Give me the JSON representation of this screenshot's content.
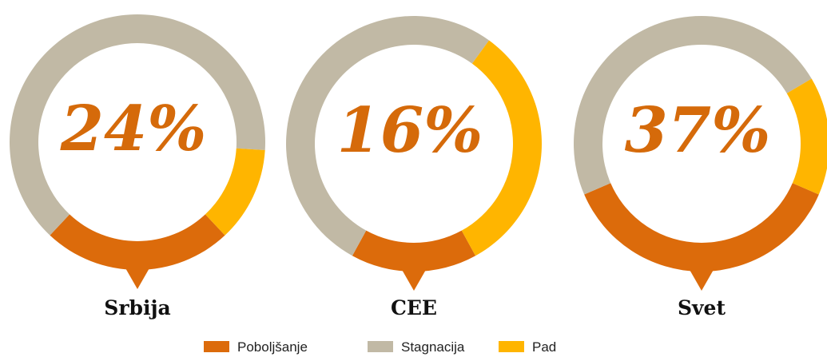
{
  "chart_data": [
    {
      "type": "pie",
      "title": "Srbija",
      "categories": [
        "Poboljšanje",
        "Stagnacija",
        "Pad"
      ],
      "values": [
        24,
        64,
        12
      ],
      "value_labels": [
        "24%",
        null,
        null
      ],
      "colors": [
        "#dc6b0b",
        "#c1b9a5",
        "#ffb500"
      ]
    },
    {
      "type": "pie",
      "title": "CEE",
      "categories": [
        "Poboljšanje",
        "Stagnacija",
        "Pad"
      ],
      "values": [
        16,
        52,
        32
      ],
      "value_labels": [
        "16%",
        null,
        null
      ],
      "colors": [
        "#dc6b0b",
        "#c1b9a5",
        "#ffb500"
      ]
    },
    {
      "type": "pie",
      "title": "Svet",
      "categories": [
        "Poboljšanje",
        "Stagnacija",
        "Pad"
      ],
      "values": [
        37,
        48,
        15
      ],
      "value_labels": [
        "37%",
        null,
        null
      ],
      "colors": [
        "#dc6b0b",
        "#c1b9a5",
        "#ffb500"
      ]
    }
  ]
}
